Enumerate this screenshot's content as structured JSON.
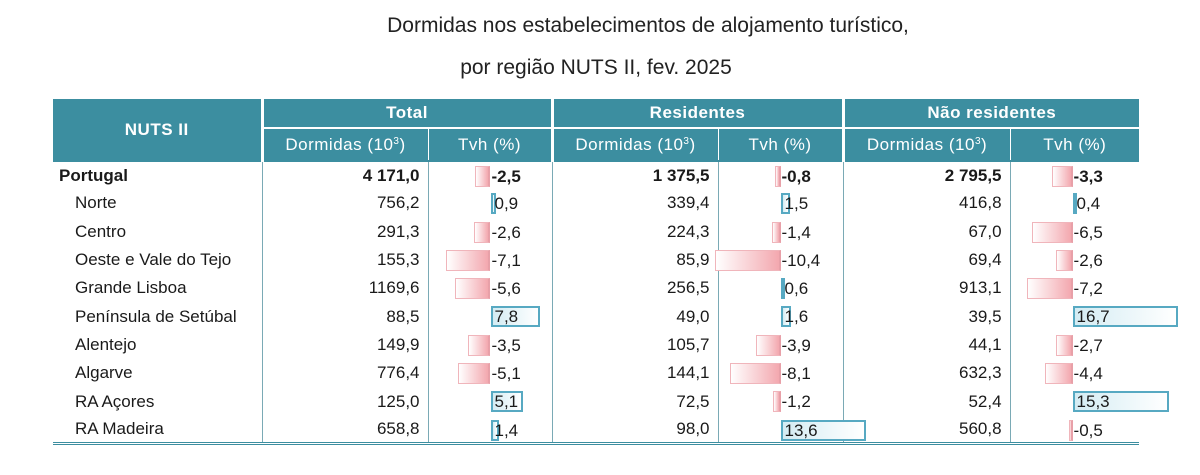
{
  "title_line1": "Dormidas nos estabelecimentos de alojamento turístico,",
  "title_line2": "por região NUTS II, fev. 2025",
  "header": {
    "nuts": "NUTS II",
    "groups": [
      "Total",
      "Residentes",
      "Não residentes"
    ],
    "col_dormidas": "Dormidas (10",
    "col_dormidas_sup": "3",
    "col_dormidas_end": ")",
    "col_tvh": "Tvh (%)"
  },
  "colors": {
    "header_bg": "#3c8ea0",
    "negative_bar": "#f3a8af",
    "positive_bar": "#57a9c2"
  },
  "chart_data": {
    "type": "table",
    "bar_scale_max": 16.7,
    "rows": [
      {
        "name": "Portugal",
        "total": "4 171,0",
        "total_tvh": "-2,5",
        "res": "1 375,5",
        "res_tvh": "-0,8",
        "nres": "2 795,5",
        "nres_tvh": "-3,3",
        "tv": [
          -2.5,
          -0.8,
          -3.3
        ]
      },
      {
        "name": "Norte",
        "total": "756,2",
        "total_tvh": "0,9",
        "res": "339,4",
        "res_tvh": "1,5",
        "nres": "416,8",
        "nres_tvh": "0,4",
        "tv": [
          0.9,
          1.5,
          0.4
        ]
      },
      {
        "name": "Centro",
        "total": "291,3",
        "total_tvh": "-2,6",
        "res": "224,3",
        "res_tvh": "-1,4",
        "nres": "67,0",
        "nres_tvh": "-6,5",
        "tv": [
          -2.6,
          -1.4,
          -6.5
        ]
      },
      {
        "name": "Oeste e Vale do  Tejo",
        "total": "155,3",
        "total_tvh": "-7,1",
        "res": "85,9",
        "res_tvh": "-10,4",
        "nres": "69,4",
        "nres_tvh": "-2,6",
        "tv": [
          -7.1,
          -10.4,
          -2.6
        ]
      },
      {
        "name": "Grande Lisboa",
        "total": "1169,6",
        "total_tvh": "-5,6",
        "res": "256,5",
        "res_tvh": "0,6",
        "nres": "913,1",
        "nres_tvh": "-7,2",
        "tv": [
          -5.6,
          0.6,
          -7.2
        ]
      },
      {
        "name": "Península de Setúbal",
        "total": "88,5",
        "total_tvh": "7,8",
        "res": "49,0",
        "res_tvh": "1,6",
        "nres": "39,5",
        "nres_tvh": "16,7",
        "tv": [
          7.8,
          1.6,
          16.7
        ]
      },
      {
        "name": "Alentejo",
        "total": "149,9",
        "total_tvh": "-3,5",
        "res": "105,7",
        "res_tvh": "-3,9",
        "nres": "44,1",
        "nres_tvh": "-2,7",
        "tv": [
          -3.5,
          -3.9,
          -2.7
        ]
      },
      {
        "name": "Algarve",
        "total": "776,4",
        "total_tvh": "-5,1",
        "res": "144,1",
        "res_tvh": "-8,1",
        "nres": "632,3",
        "nres_tvh": "-4,4",
        "tv": [
          -5.1,
          -8.1,
          -4.4
        ]
      },
      {
        "name": "RA Açores",
        "total": "125,0",
        "total_tvh": "5,1",
        "res": "72,5",
        "res_tvh": "-1,2",
        "nres": "52,4",
        "nres_tvh": "15,3",
        "tv": [
          5.1,
          -1.2,
          15.3
        ]
      },
      {
        "name": "RA Madeira",
        "total": "658,8",
        "total_tvh": "1,4",
        "res": "98,0",
        "res_tvh": "13,6",
        "nres": "560,8",
        "nres_tvh": "-0,5",
        "tv": [
          1.4,
          13.6,
          -0.5
        ]
      }
    ]
  }
}
